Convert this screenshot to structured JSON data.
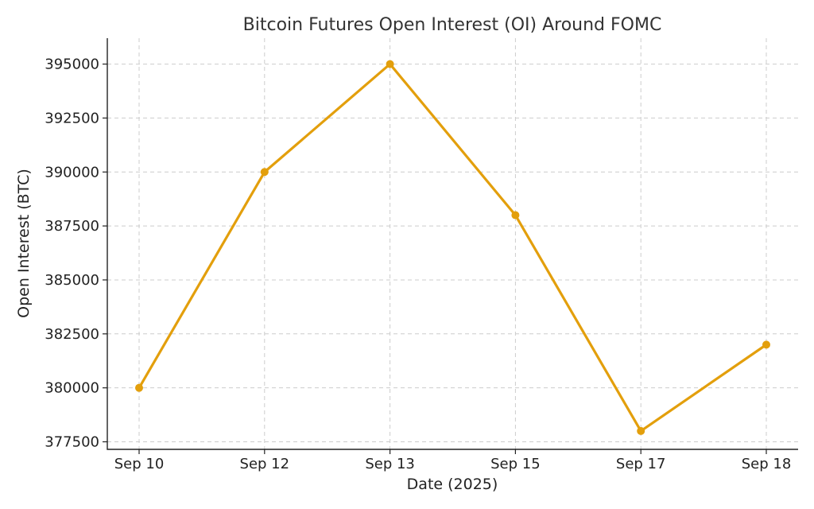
{
  "chart_data": {
    "type": "line",
    "title": "Bitcoin Futures Open Interest (OI) Around FOMC",
    "xlabel": "Date (2025)",
    "ylabel": "Open Interest (BTC)",
    "categories": [
      "Sep 10",
      "Sep 12",
      "Sep 13",
      "Sep 15",
      "Sep 17",
      "Sep 18"
    ],
    "series": [
      {
        "values": [
          380000,
          390000,
          395000,
          388000,
          378000,
          382000
        ],
        "color": "#E39F0C"
      }
    ],
    "yticks": [
      "377500",
      "380000",
      "382500",
      "385000",
      "387500",
      "390000",
      "392500",
      "395000"
    ],
    "ylim": [
      377150,
      396200
    ],
    "grid": true,
    "marker": "circle"
  }
}
